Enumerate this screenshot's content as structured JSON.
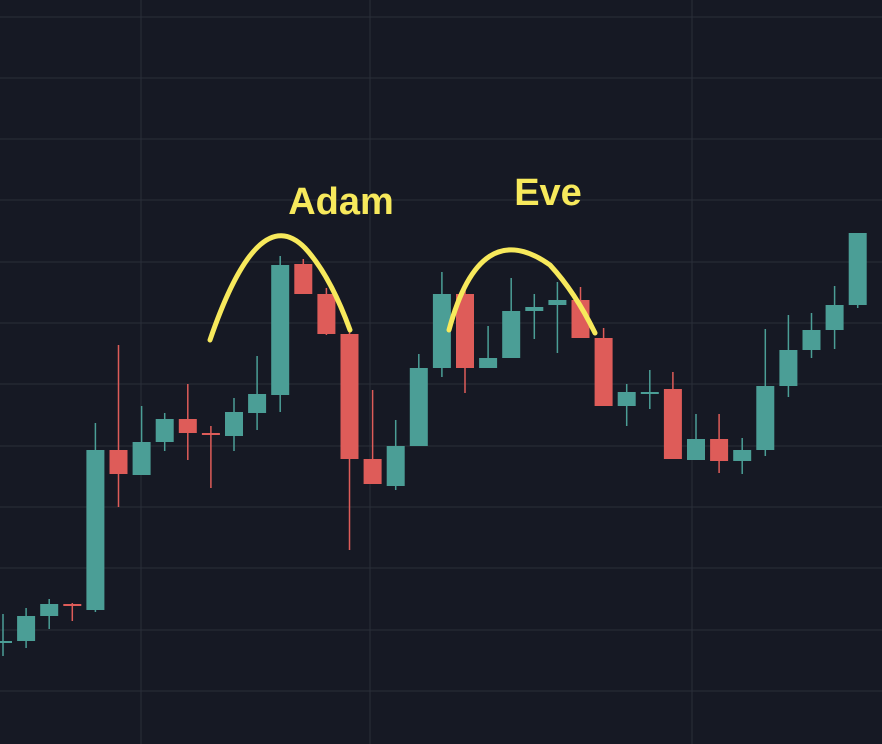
{
  "chart_data": {
    "type": "candlestick",
    "grid": true,
    "colors": {
      "background": "#161924",
      "grid": "#2a2e39",
      "up": "#4b9e96",
      "down": "#de5c59",
      "annotation": "#f7e95c"
    },
    "ylim": [
      0,
      744
    ],
    "candles": [
      {
        "o": 102,
        "h": 130,
        "l": 88,
        "c": 103
      },
      {
        "o": 103,
        "h": 136,
        "l": 96,
        "c": 128
      },
      {
        "o": 128,
        "h": 145,
        "l": 115,
        "c": 140
      },
      {
        "o": 140,
        "h": 141,
        "l": 123,
        "c": 138
      },
      {
        "o": 134,
        "h": 321,
        "l": 132,
        "c": 294
      },
      {
        "o": 294,
        "h": 399,
        "l": 237,
        "c": 270
      },
      {
        "o": 269,
        "h": 338,
        "l": 269,
        "c": 302
      },
      {
        "o": 302,
        "h": 331,
        "l": 293,
        "c": 325
      },
      {
        "o": 325,
        "h": 360,
        "l": 284,
        "c": 311
      },
      {
        "o": 311,
        "h": 318,
        "l": 256,
        "c": 309
      },
      {
        "o": 308,
        "h": 346,
        "l": 293,
        "c": 332
      },
      {
        "o": 331,
        "h": 388,
        "l": 314,
        "c": 350
      },
      {
        "o": 349,
        "h": 488,
        "l": 332,
        "c": 479
      },
      {
        "o": 480,
        "h": 485,
        "l": 450,
        "c": 450
      },
      {
        "o": 450,
        "h": 456,
        "l": 409,
        "c": 410
      },
      {
        "o": 410,
        "h": 412,
        "l": 194,
        "c": 285
      },
      {
        "o": 285,
        "h": 354,
        "l": 260,
        "c": 260
      },
      {
        "o": 258,
        "h": 324,
        "l": 254,
        "c": 298
      },
      {
        "o": 298,
        "h": 390,
        "l": 298,
        "c": 376
      },
      {
        "o": 376,
        "h": 472,
        "l": 367,
        "c": 450
      },
      {
        "o": 450,
        "h": 459,
        "l": 351,
        "c": 376
      },
      {
        "o": 376,
        "h": 418,
        "l": 376,
        "c": 386
      },
      {
        "o": 386,
        "h": 466,
        "l": 386,
        "c": 433
      },
      {
        "o": 433,
        "h": 450,
        "l": 405,
        "c": 437
      },
      {
        "o": 439,
        "h": 462,
        "l": 391,
        "c": 444
      },
      {
        "o": 444,
        "h": 457,
        "l": 406,
        "c": 406
      },
      {
        "o": 406,
        "h": 416,
        "l": 338,
        "c": 338
      },
      {
        "o": 338,
        "h": 360,
        "l": 318,
        "c": 352
      },
      {
        "o": 352,
        "h": 374,
        "l": 335,
        "c": 352
      },
      {
        "o": 355,
        "h": 372,
        "l": 285,
        "c": 285
      },
      {
        "o": 284,
        "h": 330,
        "l": 284,
        "c": 305
      },
      {
        "o": 305,
        "h": 330,
        "l": 271,
        "c": 283
      },
      {
        "o": 283,
        "h": 306,
        "l": 270,
        "c": 294
      },
      {
        "o": 294,
        "h": 415,
        "l": 288,
        "c": 358
      },
      {
        "o": 358,
        "h": 429,
        "l": 347,
        "c": 394
      },
      {
        "o": 394,
        "h": 431,
        "l": 386,
        "c": 414
      },
      {
        "o": 414,
        "h": 458,
        "l": 395,
        "c": 439
      },
      {
        "o": 439,
        "h": 511,
        "l": 436,
        "c": 511
      }
    ],
    "annotations": [
      {
        "text": "Adam",
        "type": "arc"
      },
      {
        "text": "Eve",
        "type": "arc"
      }
    ]
  }
}
